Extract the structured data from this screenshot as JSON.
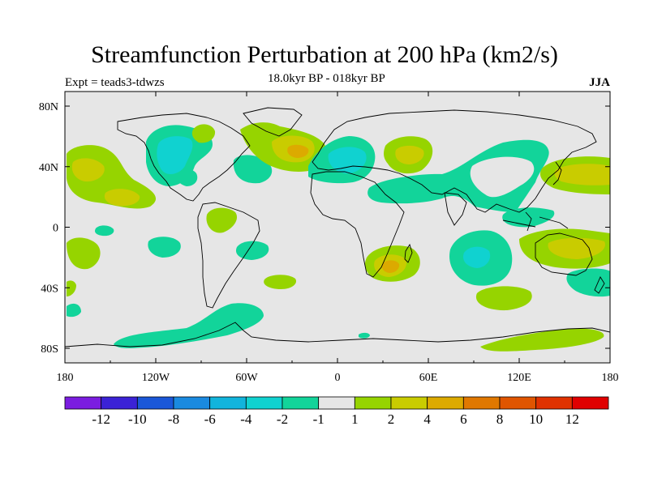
{
  "title": "Streamfunction Perturbation at 200 hPa (km2/s)",
  "subtitle": "18.0kyr BP - 018kyr BP",
  "experiment": "Expt = teads3-tdwzs",
  "season": "JJA",
  "colors": {
    "ocean_land_background": "#e6e6e6",
    "coastline": "#000000",
    "frame": "#000000"
  },
  "map": {
    "lon_ticks": [
      "180",
      "120W",
      "60W",
      "0",
      "60E",
      "120E",
      "180"
    ],
    "lat_ticks": [
      "80N",
      "40N",
      "0",
      "40S",
      "80S"
    ]
  },
  "colorbar": {
    "colors": [
      "#7b1de0",
      "#3b22d6",
      "#1a57d8",
      "#1a8ae0",
      "#12b4dc",
      "#10d2d0",
      "#12d49a",
      "#e6e6e6",
      "#96d400",
      "#c9cc00",
      "#dcaa00",
      "#e07800",
      "#e05500",
      "#e03200",
      "#e00000"
    ],
    "labels": [
      "-12",
      "-10",
      "-8",
      "-6",
      "-4",
      "-2",
      "-1",
      "1",
      "2",
      "4",
      "6",
      "8",
      "10",
      "12"
    ]
  }
}
